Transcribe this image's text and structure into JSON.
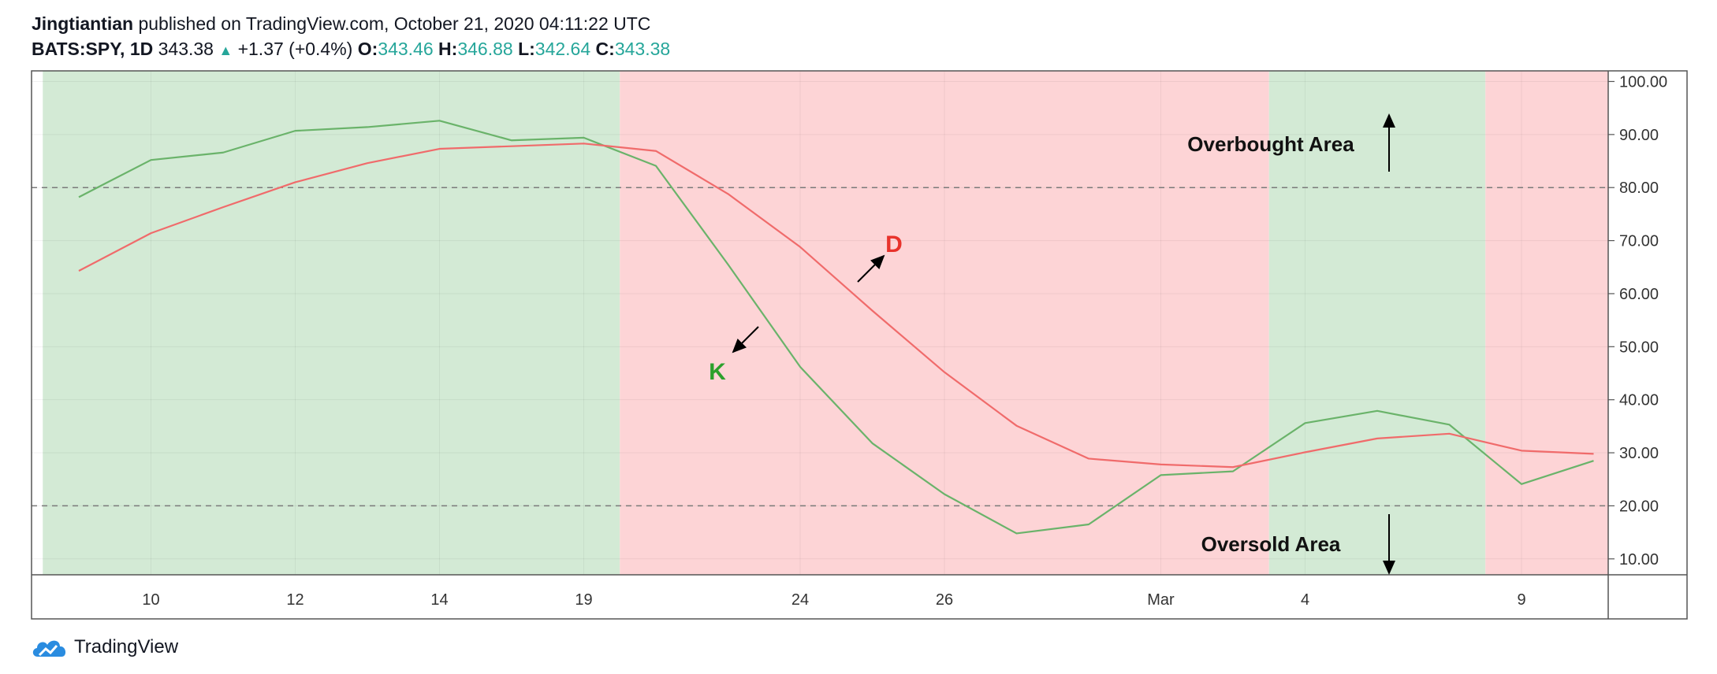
{
  "header": {
    "author": "Jingtiantian",
    "published": " published on TradingView.com, October 21, 2020 04:11:22 UTC",
    "symbol": "BATS:SPY, 1D",
    "price": "343.38",
    "change": "+1.37 (+0.4%)",
    "o_label": "O:",
    "o_value": "343.46",
    "h_label": "H:",
    "h_value": "346.88",
    "l_label": "L:",
    "l_value": "342.64",
    "c_label": "C:",
    "c_value": "343.38"
  },
  "footer": {
    "brand": "TradingView",
    "logo_icon": "tradingview-cloud-icon"
  },
  "colors": {
    "green_zone": "#d3ead5",
    "red_zone": "#fdd4d6",
    "k_line": "#6ab36a",
    "d_line": "#f06b6b",
    "k_label": "#2ca02c",
    "d_label": "#e8322b",
    "accent": "#26a69a"
  },
  "chart_data": {
    "type": "line",
    "title": "",
    "ylim": [
      7,
      102
    ],
    "y_ticks": [
      "100.00",
      "90.00",
      "80.00",
      "70.00",
      "60.00",
      "50.00",
      "40.00",
      "30.00",
      "20.00",
      "10.00"
    ],
    "x_ticks": [
      "10",
      "12",
      "14",
      "19",
      "24",
      "26",
      "Mar",
      "4",
      "9"
    ],
    "reference_lines": [
      80,
      20
    ],
    "grid": true,
    "series": [
      {
        "name": "K",
        "values": [
          78.2,
          85.2,
          86.6,
          90.7,
          91.4,
          92.6,
          88.9,
          89.4,
          84.1,
          65.5,
          46.2,
          31.8,
          22.2,
          14.8,
          16.5,
          25.8,
          26.5,
          35.6,
          37.9,
          35.3,
          24.1,
          28.5
        ]
      },
      {
        "name": "D",
        "values": [
          64.3,
          71.4,
          76.3,
          81.0,
          84.6,
          87.3,
          87.8,
          88.3,
          86.9,
          78.8,
          68.8,
          56.8,
          45.2,
          35.1,
          28.9,
          27.8,
          27.3,
          30.1,
          32.7,
          33.6,
          30.4,
          29.8
        ]
      }
    ],
    "zones": [
      {
        "from": -0.5,
        "to": 7.5,
        "color": "green"
      },
      {
        "from": 7.5,
        "to": 16.5,
        "color": "red"
      },
      {
        "from": 16.5,
        "to": 19.5,
        "color": "green"
      },
      {
        "from": 19.5,
        "to": 21.2,
        "color": "red"
      }
    ],
    "annotations": {
      "overbought": "Overbought Area",
      "oversold": "Oversold Area",
      "k_label": "K",
      "d_label": "D"
    }
  }
}
